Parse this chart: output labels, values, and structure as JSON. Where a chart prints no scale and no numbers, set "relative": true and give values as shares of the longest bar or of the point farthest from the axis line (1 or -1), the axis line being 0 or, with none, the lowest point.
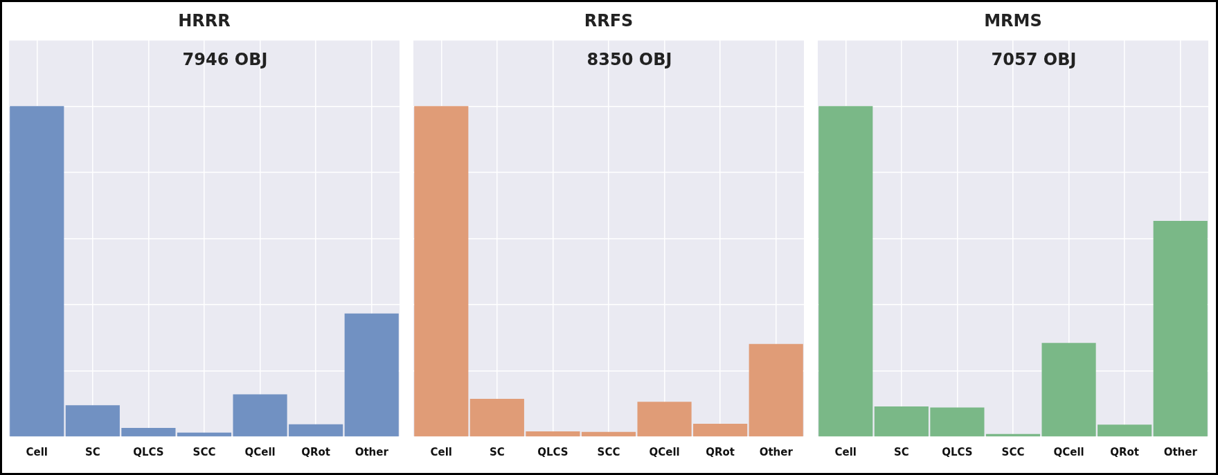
{
  "chart_data": [
    {
      "type": "bar",
      "title": "HRRR",
      "categories": [
        "Cell",
        "SC",
        "QLCS",
        "SCC",
        "QCell",
        "QRot",
        "Other"
      ],
      "relative": true,
      "color": "#7191c2",
      "values": [
        1,
        0.096,
        0.027,
        0.013,
        0.129,
        0.038,
        0.373
      ],
      "annotations": [
        "7946 OBJ"
      ],
      "grid": true
    },
    {
      "type": "bar",
      "title": "RRFS",
      "categories": [
        "Cell",
        "SC",
        "QLCS",
        "SCC",
        "QCell",
        "QRot",
        "Other"
      ],
      "relative": true,
      "color": "#e09c77",
      "values": [
        1,
        0.115,
        0.017,
        0.015,
        0.106,
        0.04,
        0.281
      ],
      "annotations": [
        "8350 OBJ"
      ],
      "grid": true
    },
    {
      "type": "bar",
      "title": "MRMS",
      "categories": [
        "Cell",
        "SC",
        "QLCS",
        "SCC",
        "QCell",
        "QRot",
        "Other"
      ],
      "relative": true,
      "color": "#7ab887",
      "values": [
        1,
        0.092,
        0.089,
        0.009,
        0.284,
        0.037,
        0.653
      ],
      "annotations": [
        "7057 OBJ"
      ],
      "grid": true
    }
  ]
}
